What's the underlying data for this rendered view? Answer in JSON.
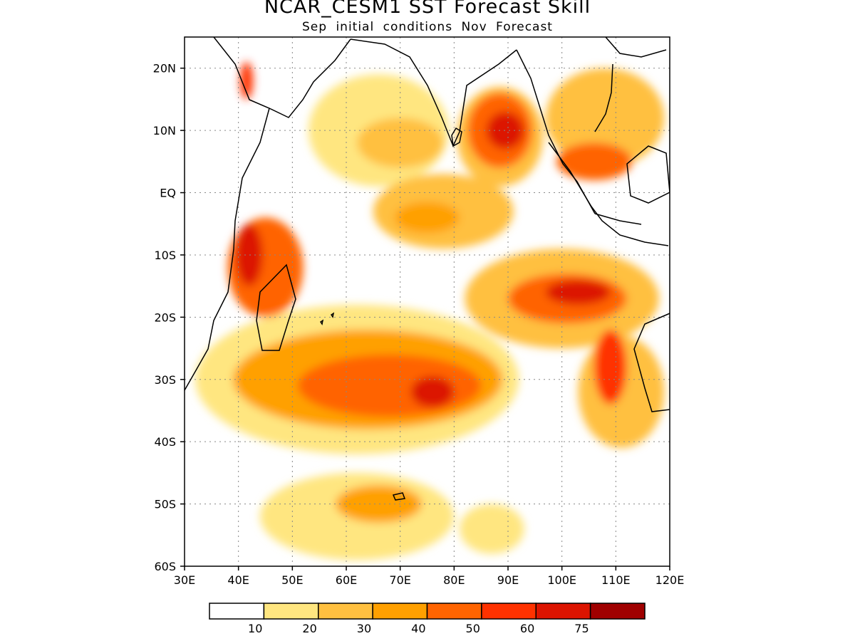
{
  "title": "NCAR_CESM1 SST Forecast Skill",
  "subtitle": "Sep initial conditions  Nov Forecast",
  "map": {
    "lon_range": [
      30,
      120
    ],
    "lat_range": [
      -60,
      25
    ],
    "lon_ticks": [
      {
        "value": 30,
        "label": "30E"
      },
      {
        "value": 40,
        "label": "40E"
      },
      {
        "value": 50,
        "label": "50E"
      },
      {
        "value": 60,
        "label": "60E"
      },
      {
        "value": 70,
        "label": "70E"
      },
      {
        "value": 80,
        "label": "80E"
      },
      {
        "value": 90,
        "label": "90E"
      },
      {
        "value": 100,
        "label": "100E"
      },
      {
        "value": 110,
        "label": "110E"
      },
      {
        "value": 120,
        "label": "120E"
      }
    ],
    "lat_ticks": [
      {
        "value": 20,
        "label": "20N"
      },
      {
        "value": 10,
        "label": "10N"
      },
      {
        "value": 0,
        "label": "EQ"
      },
      {
        "value": -10,
        "label": "10S"
      },
      {
        "value": -20,
        "label": "20S"
      },
      {
        "value": -30,
        "label": "30S"
      },
      {
        "value": -40,
        "label": "40S"
      },
      {
        "value": -50,
        "label": "50S"
      },
      {
        "value": -60,
        "label": "60S"
      }
    ],
    "gridlines": "dotted"
  },
  "colorbar": {
    "colors": [
      "#ffffff",
      "#ffe680",
      "#ffc040",
      "#ffa000",
      "#ff6400",
      "#ff3200",
      "#dc1400",
      "#a00000"
    ],
    "labels": [
      "10",
      "20",
      "30",
      "40",
      "50",
      "60",
      "75"
    ]
  },
  "skill_regions": [
    {
      "name": "arabian-sea-coast",
      "level": 5,
      "lon": 41.5,
      "lat": 18,
      "rx": 1.2,
      "ry": 3
    },
    {
      "name": "west-arabian-sea",
      "level": 1,
      "lon": 66,
      "lat": 10,
      "rx": 13,
      "ry": 9
    },
    {
      "name": "west-arabian-sea-core",
      "level": 2,
      "lon": 70,
      "lat": 8,
      "rx": 8,
      "ry": 4
    },
    {
      "name": "bay-of-bengal",
      "level": 2,
      "lon": 88.5,
      "lat": 9,
      "rx": 8,
      "ry": 8
    },
    {
      "name": "bay-of-bengal-mid",
      "level": 4,
      "lon": 88.5,
      "lat": 10,
      "rx": 6,
      "ry": 6
    },
    {
      "name": "bay-of-bengal-core",
      "level": 6,
      "lon": 89.5,
      "lat": 10,
      "rx": 3.5,
      "ry": 3
    },
    {
      "name": "equatorial-east",
      "level": 2,
      "lon": 78,
      "lat": -3,
      "rx": 13,
      "ry": 6
    },
    {
      "name": "equatorial-core",
      "level": 3,
      "lon": 75,
      "lat": -4,
      "rx": 6,
      "ry": 2.5
    },
    {
      "name": "south-china-sea",
      "level": 2,
      "lon": 108,
      "lat": 12,
      "rx": 11,
      "ry": 8
    },
    {
      "name": "south-china-sea-core",
      "level": 4,
      "lon": 106,
      "lat": 5,
      "rx": 7,
      "ry": 3
    },
    {
      "name": "mozambique-channel",
      "level": 4,
      "lon": 45,
      "lat": -12,
      "rx": 7,
      "ry": 8
    },
    {
      "name": "mozambique-core",
      "level": 6,
      "lon": 42,
      "lat": -10,
      "rx": 2.5,
      "ry": 5
    },
    {
      "name": "south-indian-band",
      "level": 1,
      "lon": 62,
      "lat": -30,
      "rx": 30,
      "ry": 12
    },
    {
      "name": "south-indian-band-mid",
      "level": 3,
      "lon": 64,
      "lat": -30,
      "rx": 25,
      "ry": 8
    },
    {
      "name": "south-indian-band-inner",
      "level": 4,
      "lon": 68,
      "lat": -31,
      "rx": 17,
      "ry": 5
    },
    {
      "name": "south-indian-band-core",
      "level": 6,
      "lon": 76,
      "lat": -32,
      "rx": 4,
      "ry": 2.5
    },
    {
      "name": "southeast-indian",
      "level": 2,
      "lon": 100,
      "lat": -17,
      "rx": 18,
      "ry": 8
    },
    {
      "name": "southeast-indian-mid",
      "level": 4,
      "lon": 101,
      "lat": -17,
      "rx": 11,
      "ry": 4
    },
    {
      "name": "southeast-indian-core",
      "level": 6,
      "lon": 103,
      "lat": -16,
      "rx": 6,
      "ry": 2
    },
    {
      "name": "west-australia",
      "level": 2,
      "lon": 111,
      "lat": -32,
      "rx": 8,
      "ry": 9
    },
    {
      "name": "west-australia-core",
      "level": 5,
      "lon": 109,
      "lat": -28,
      "rx": 3,
      "ry": 6
    },
    {
      "name": "southern-ocean",
      "level": 1,
      "lon": 62,
      "lat": -52,
      "rx": 18,
      "ry": 7
    },
    {
      "name": "southern-ocean-core",
      "level": 3,
      "lon": 66,
      "lat": -50,
      "rx": 8,
      "ry": 3
    },
    {
      "name": "far-south-east",
      "level": 1,
      "lon": 87,
      "lat": -54,
      "rx": 6,
      "ry": 4
    }
  ]
}
